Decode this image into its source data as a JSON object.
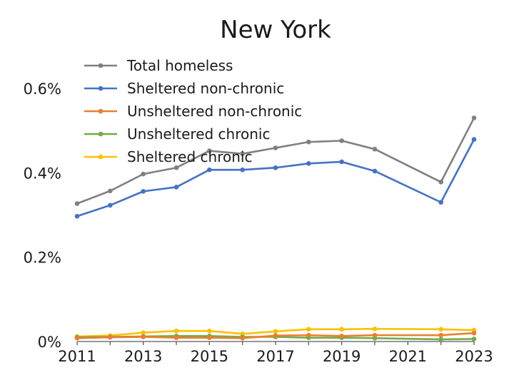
{
  "chart_data": {
    "type": "line",
    "title": "New York",
    "xlabel": "",
    "ylabel": "",
    "x": [
      2011,
      2012,
      2013,
      2014,
      2015,
      2016,
      2017,
      2018,
      2019,
      2020,
      2022,
      2023
    ],
    "x_ticks": [
      "2011",
      "2013",
      "2015",
      "2017",
      "2019",
      "2021",
      "2023"
    ],
    "x_tick_values": [
      2011,
      2013,
      2015,
      2017,
      2019,
      2021,
      2023
    ],
    "xlim": [
      2011,
      2023
    ],
    "y_ticks": [
      "0%",
      "0.2%",
      "0.4%",
      "0.6%"
    ],
    "y_tick_values": [
      0,
      0.2,
      0.4,
      0.6
    ],
    "ylim": [
      0,
      0.6
    ],
    "grid": false,
    "legend_position": "top-left",
    "series": [
      {
        "name": "Total homeless",
        "color": "#808080",
        "values": [
          0.327,
          0.357,
          0.397,
          0.412,
          0.452,
          0.445,
          0.459,
          0.473,
          0.476,
          0.456,
          0.378,
          0.53
        ]
      },
      {
        "name": "Sheltered non-chronic",
        "color": "#4472C4",
        "values": [
          0.297,
          0.323,
          0.356,
          0.366,
          0.407,
          0.407,
          0.412,
          0.422,
          0.426,
          0.404,
          0.33,
          0.479
        ]
      },
      {
        "name": "Unsheltered non-chronic",
        "color": "#ED7D31",
        "values": [
          0.008,
          0.01,
          0.011,
          0.009,
          0.009,
          0.008,
          0.014,
          0.015,
          0.013,
          0.015,
          0.015,
          0.02
        ]
      },
      {
        "name": "Unsheltered chronic",
        "color": "#70AD47",
        "values": [
          0.01,
          0.011,
          0.012,
          0.013,
          0.013,
          0.011,
          0.011,
          0.009,
          0.009,
          0.008,
          0.005,
          0.006
        ]
      },
      {
        "name": "Sheltered chronic",
        "color": "#FFC000",
        "values": [
          0.012,
          0.014,
          0.021,
          0.025,
          0.025,
          0.018,
          0.024,
          0.029,
          0.029,
          0.03,
          0.029,
          0.027
        ]
      }
    ]
  }
}
